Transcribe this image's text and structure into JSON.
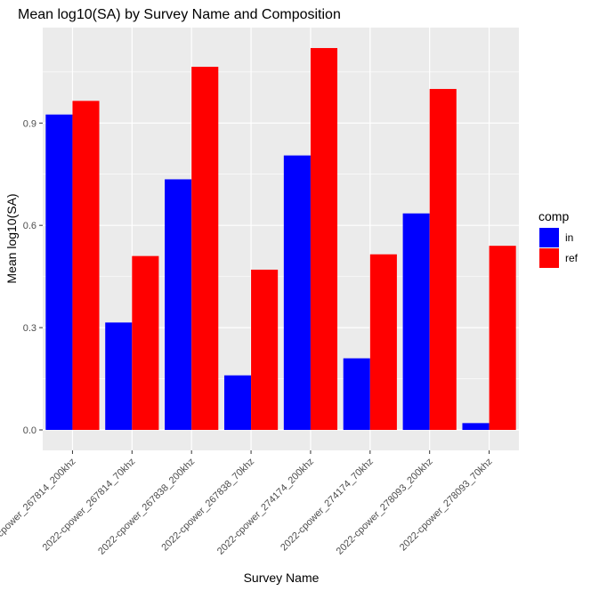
{
  "chart_data": {
    "type": "bar",
    "title": "Mean log10(SA) by Survey Name and Composition",
    "xlabel": "Survey Name",
    "ylabel": "Mean log10(SA)",
    "ylim": [
      -0.06,
      1.18
    ],
    "yticks": [
      0.0,
      0.3,
      0.6,
      0.9
    ],
    "ytick_labels": [
      "0.0",
      "0.3",
      "0.6",
      "0.9"
    ],
    "grid": true,
    "legend_placement": "right",
    "legend_title": "comp",
    "categories": [
      "2022-cpower_267814_200khz",
      "2022-cpower_267814_70khz",
      "2022-cpower_267838_200khz",
      "2022-cpower_267838_70khz",
      "2022-cpower_274174_200khz",
      "2022-cpower_274174_70khz",
      "2022-cpower_278093_200khz",
      "2022-cpower_278093_70khz"
    ],
    "series": [
      {
        "name": "in",
        "color": "#0000ff",
        "values": [
          0.925,
          0.315,
          0.735,
          0.16,
          0.805,
          0.21,
          0.635,
          0.02
        ]
      },
      {
        "name": "ref",
        "color": "#ff0000",
        "values": [
          0.965,
          0.51,
          1.065,
          0.47,
          1.12,
          0.515,
          1.0,
          0.54
        ]
      }
    ]
  }
}
